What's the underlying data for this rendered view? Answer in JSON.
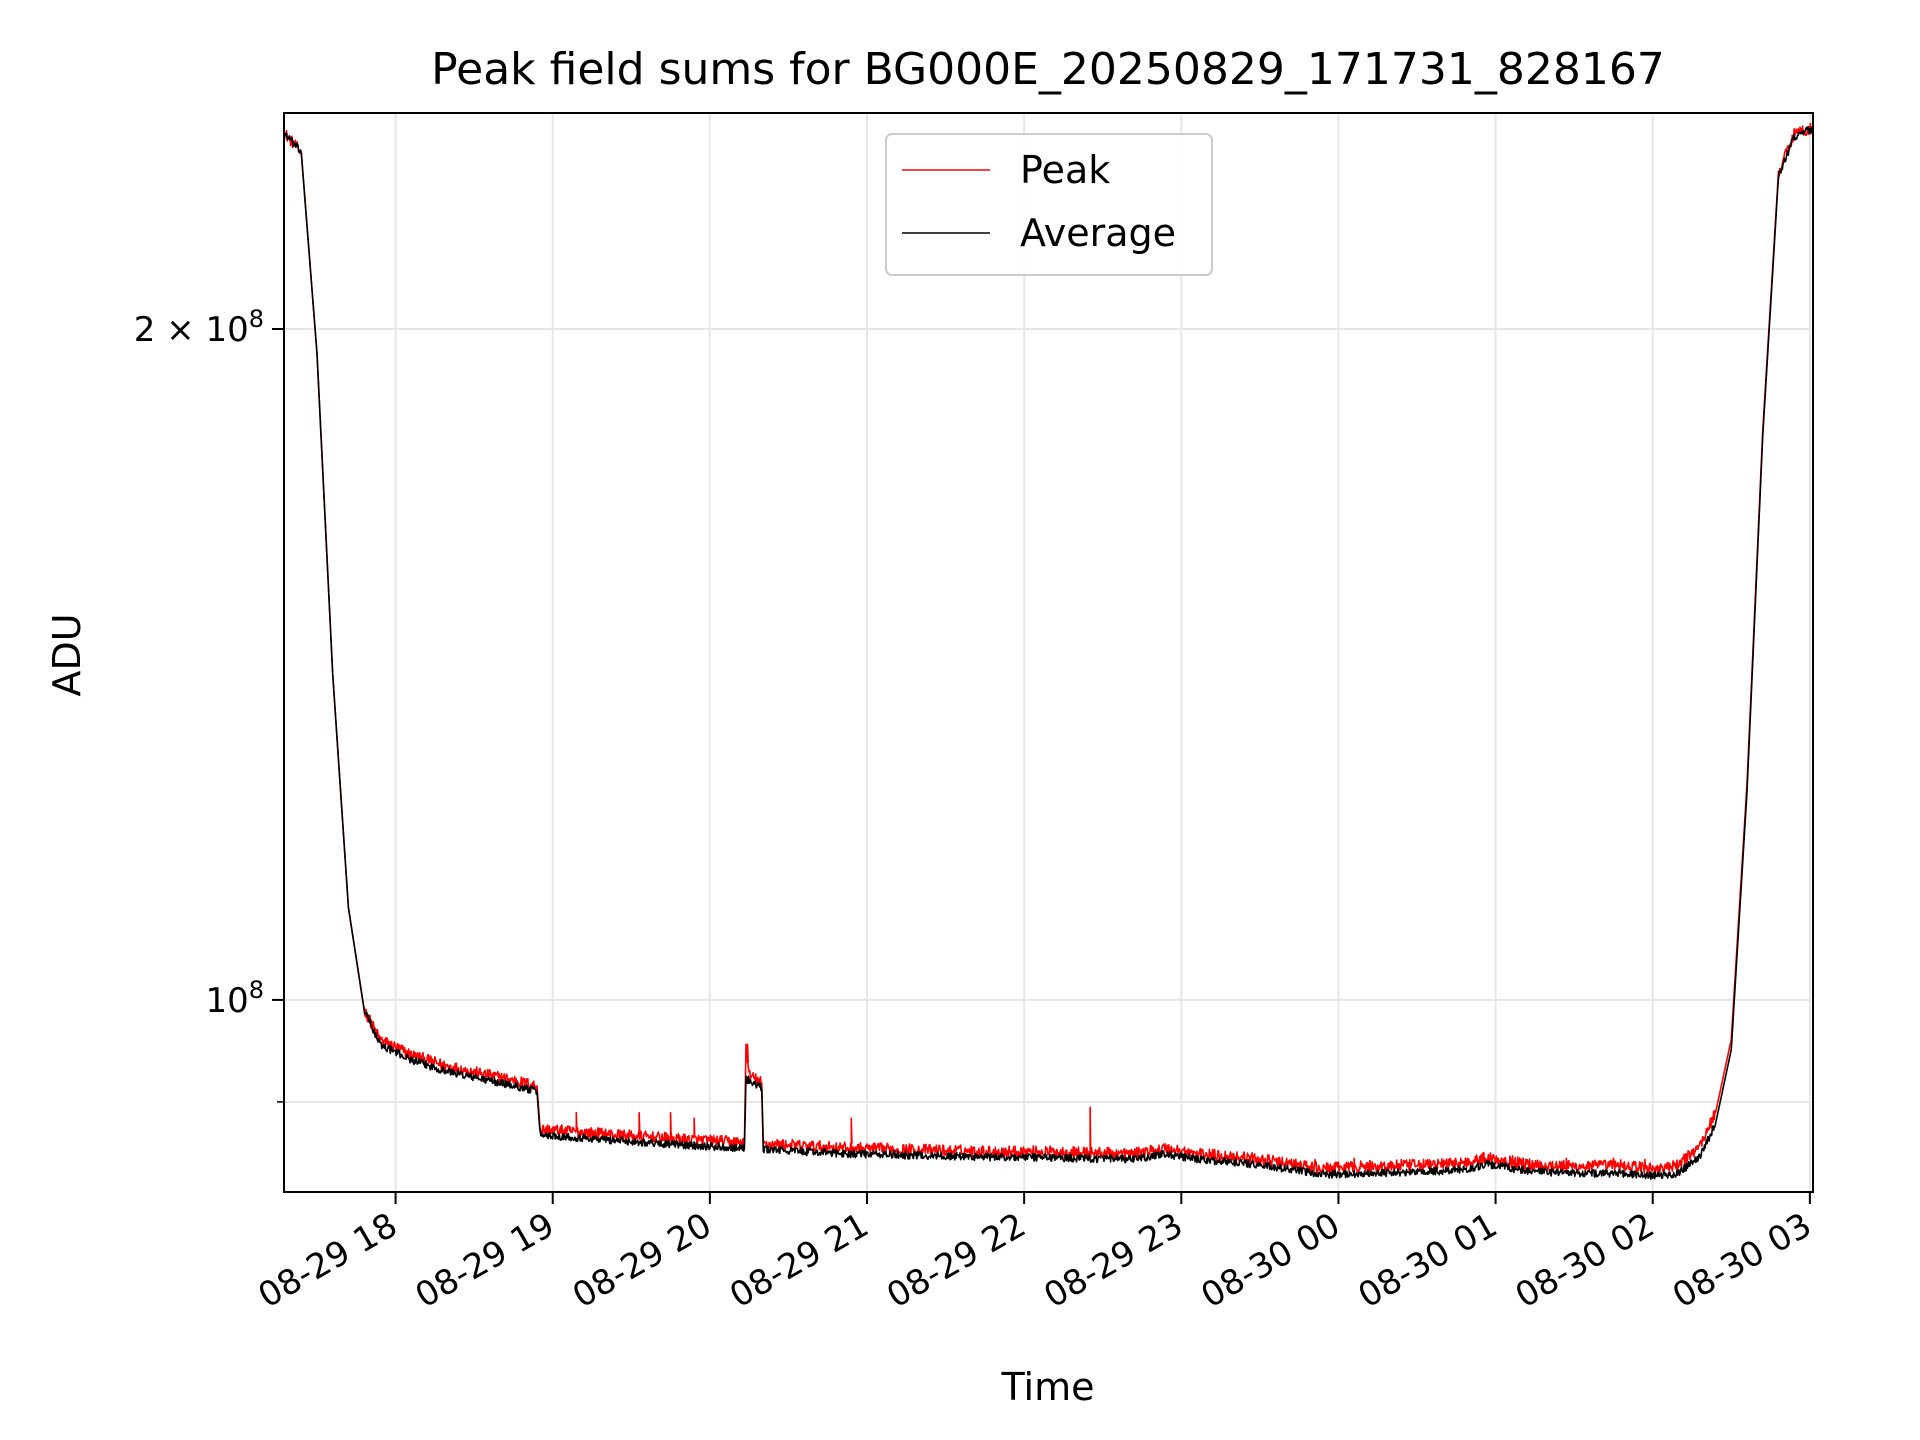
{
  "chart_data": {
    "type": "line",
    "title": "Peak field sums for BG000E_20250829_171731_828167",
    "xlabel": "Time",
    "ylabel": "ADU",
    "yscale": "log",
    "ylim": [
      82000000,
      250000000
    ],
    "xlim_hours": [
      17.29,
      27.02
    ],
    "grid": true,
    "legend_location": "upper center",
    "x_ticks": [
      {
        "hour": 18,
        "label": "08-29 18"
      },
      {
        "hour": 19,
        "label": "08-29 19"
      },
      {
        "hour": 20,
        "label": "08-29 20"
      },
      {
        "hour": 21,
        "label": "08-29 21"
      },
      {
        "hour": 22,
        "label": "08-29 22"
      },
      {
        "hour": 23,
        "label": "08-29 23"
      },
      {
        "hour": 24,
        "label": "08-30 00"
      },
      {
        "hour": 25,
        "label": "08-30 01"
      },
      {
        "hour": 26,
        "label": "08-30 02"
      },
      {
        "hour": 27,
        "label": "08-30 03"
      }
    ],
    "y_ticks": [
      {
        "value": 200000000,
        "base": "2 × 10",
        "exp": "8"
      },
      {
        "value": 100000000,
        "base": "10",
        "exp": "8"
      }
    ],
    "y_minor_ticks": [
      90000000
    ],
    "series": [
      {
        "name": "Peak",
        "color": "#ff0000",
        "points": [
          [
            17.29,
            245000000
          ],
          [
            17.4,
            240000000
          ],
          [
            17.5,
            195000000
          ],
          [
            17.6,
            140000000
          ],
          [
            17.7,
            110000000
          ],
          [
            17.8,
            99000000
          ],
          [
            17.9,
            96000000
          ],
          [
            18.1,
            94500000
          ],
          [
            18.3,
            93500000
          ],
          [
            18.5,
            92800000
          ],
          [
            18.7,
            92200000
          ],
          [
            18.9,
            91500000
          ],
          [
            18.92,
            87500000
          ],
          [
            19.2,
            87200000
          ],
          [
            19.4,
            87000000
          ],
          [
            19.6,
            86800000
          ],
          [
            19.8,
            86600000
          ],
          [
            20.1,
            86400000
          ],
          [
            20.22,
            86300000
          ],
          [
            20.23,
            95500000
          ],
          [
            20.25,
            92500000
          ],
          [
            20.33,
            91800000
          ],
          [
            20.34,
            86200000
          ],
          [
            20.6,
            86000000
          ],
          [
            20.9,
            85800000
          ],
          [
            21.2,
            85700000
          ],
          [
            21.5,
            85600000
          ],
          [
            21.8,
            85500000
          ],
          [
            22.1,
            85500000
          ],
          [
            22.4,
            85400000
          ],
          [
            22.7,
            85300000
          ],
          [
            22.9,
            85800000
          ],
          [
            23.1,
            85300000
          ],
          [
            23.4,
            85000000
          ],
          [
            23.7,
            84400000
          ],
          [
            23.9,
            84000000
          ],
          [
            24.2,
            84200000
          ],
          [
            24.5,
            84300000
          ],
          [
            24.8,
            84500000
          ],
          [
            24.95,
            85000000
          ],
          [
            25.2,
            84400000
          ],
          [
            25.5,
            84200000
          ],
          [
            25.8,
            84300000
          ],
          [
            26.0,
            84000000
          ],
          [
            26.15,
            84200000
          ],
          [
            26.3,
            86000000
          ],
          [
            26.4,
            89000000
          ],
          [
            26.5,
            96000000
          ],
          [
            26.6,
            125000000
          ],
          [
            26.7,
            180000000
          ],
          [
            26.8,
            235000000
          ],
          [
            26.9,
            245000000
          ],
          [
            27.02,
            246000000
          ]
        ],
        "spikes": [
          [
            19.15,
            89000000
          ],
          [
            19.55,
            89000000
          ],
          [
            19.75,
            89000000
          ],
          [
            19.9,
            88500000
          ],
          [
            20.24,
            95500000
          ],
          [
            20.9,
            88500000
          ],
          [
            22.42,
            89500000
          ],
          [
            23.85,
            84800000
          ],
          [
            24.1,
            84900000
          ],
          [
            24.4,
            84800000
          ],
          [
            24.7,
            84800000
          ],
          [
            25.45,
            84900000
          ],
          [
            25.75,
            84900000
          ],
          [
            25.95,
            84800000
          ]
        ]
      },
      {
        "name": "Average",
        "color": "#000000",
        "points": [
          [
            17.29,
            245000000
          ],
          [
            17.4,
            240000000
          ],
          [
            17.5,
            195000000
          ],
          [
            17.6,
            140000000
          ],
          [
            17.7,
            110000000
          ],
          [
            17.8,
            99000000
          ],
          [
            17.9,
            95500000
          ],
          [
            18.1,
            94000000
          ],
          [
            18.3,
            93000000
          ],
          [
            18.5,
            92300000
          ],
          [
            18.7,
            91700000
          ],
          [
            18.9,
            91000000
          ],
          [
            18.92,
            87000000
          ],
          [
            19.2,
            86700000
          ],
          [
            19.4,
            86500000
          ],
          [
            19.6,
            86300000
          ],
          [
            19.8,
            86100000
          ],
          [
            20.1,
            85900000
          ],
          [
            20.22,
            85800000
          ],
          [
            20.23,
            92200000
          ],
          [
            20.25,
            92000000
          ],
          [
            20.33,
            91300000
          ],
          [
            20.34,
            85700000
          ],
          [
            20.6,
            85500000
          ],
          [
            20.9,
            85300000
          ],
          [
            21.2,
            85200000
          ],
          [
            21.5,
            85100000
          ],
          [
            21.8,
            85000000
          ],
          [
            22.1,
            85000000
          ],
          [
            22.4,
            84900000
          ],
          [
            22.7,
            84800000
          ],
          [
            22.9,
            85300000
          ],
          [
            23.1,
            84800000
          ],
          [
            23.4,
            84500000
          ],
          [
            23.7,
            83900000
          ],
          [
            23.9,
            83500000
          ],
          [
            24.2,
            83600000
          ],
          [
            24.5,
            83700000
          ],
          [
            24.8,
            83900000
          ],
          [
            24.95,
            84400000
          ],
          [
            25.2,
            83800000
          ],
          [
            25.5,
            83600000
          ],
          [
            25.8,
            83600000
          ],
          [
            26.0,
            83400000
          ],
          [
            26.15,
            83500000
          ],
          [
            26.3,
            85000000
          ],
          [
            26.4,
            88000000
          ],
          [
            26.5,
            95000000
          ],
          [
            26.6,
            124000000
          ],
          [
            26.7,
            179000000
          ],
          [
            26.8,
            234000000
          ],
          [
            26.9,
            244000000
          ],
          [
            27.02,
            246000000
          ]
        ],
        "spikes": []
      }
    ]
  }
}
